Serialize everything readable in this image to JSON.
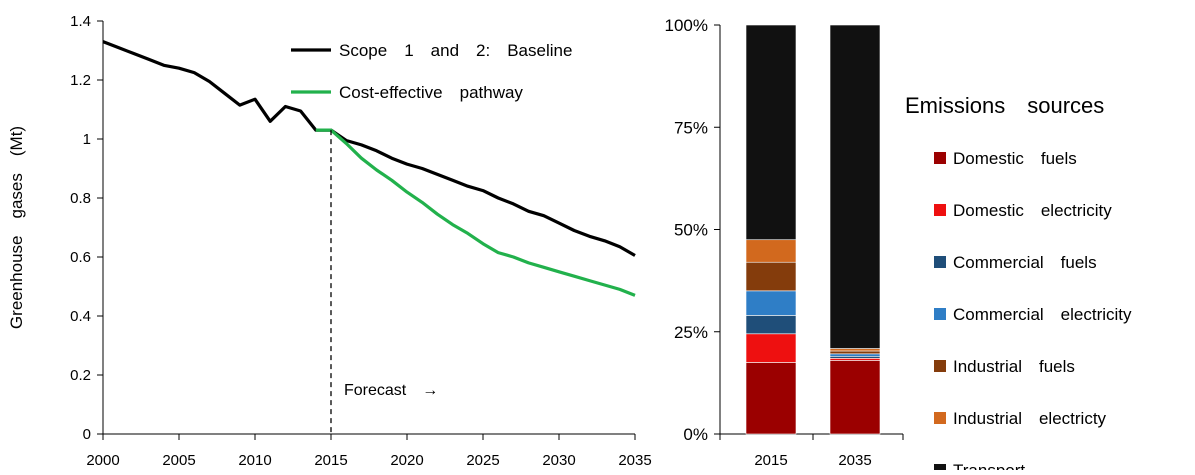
{
  "chart_data": [
    {
      "type": "line",
      "xlabel": "",
      "ylabel": "Greenhouse gases (Mt)",
      "xlim": [
        2000,
        2035
      ],
      "ylim": [
        0,
        1.4
      ],
      "xticks": [
        "2000",
        "2005",
        "2010",
        "2015",
        "2020",
        "2025",
        "2030",
        "2035"
      ],
      "yticks": [
        "0",
        "0.2",
        "0.4",
        "0.6",
        "0.8",
        "1",
        "1.2",
        "1.4"
      ],
      "series": [
        {
          "name": "Scope 1 and 2: Baseline",
          "color": "#000000",
          "x": [
            2000,
            2001,
            2002,
            2003,
            2004,
            2005,
            2006,
            2007,
            2008,
            2009,
            2010,
            2011,
            2012,
            2013,
            2014,
            2015,
            2016,
            2017,
            2018,
            2019,
            2020,
            2021,
            2022,
            2023,
            2024,
            2025,
            2026,
            2027,
            2028,
            2029,
            2030,
            2031,
            2032,
            2033,
            2034,
            2035
          ],
          "y": [
            1.33,
            1.31,
            1.29,
            1.27,
            1.25,
            1.24,
            1.225,
            1.195,
            1.155,
            1.115,
            1.135,
            1.06,
            1.11,
            1.095,
            1.03,
            1.03,
            0.995,
            0.98,
            0.96,
            0.935,
            0.915,
            0.9,
            0.88,
            0.86,
            0.84,
            0.825,
            0.8,
            0.78,
            0.755,
            0.74,
            0.715,
            0.69,
            0.67,
            0.655,
            0.635,
            0.605
          ]
        },
        {
          "name": "Cost-effective pathway",
          "color": "#22b14c",
          "x": [
            2014,
            2015,
            2016,
            2017,
            2018,
            2019,
            2020,
            2021,
            2022,
            2023,
            2024,
            2025,
            2026,
            2027,
            2028,
            2029,
            2030,
            2031,
            2032,
            2033,
            2034,
            2035
          ],
          "y": [
            1.03,
            1.03,
            0.985,
            0.935,
            0.895,
            0.86,
            0.82,
            0.785,
            0.745,
            0.71,
            0.68,
            0.645,
            0.615,
            0.6,
            0.58,
            0.565,
            0.55,
            0.535,
            0.52,
            0.505,
            0.49,
            0.47
          ]
        }
      ],
      "annotations": [
        {
          "text": "Forecast →",
          "x": 2015,
          "y": 0.15,
          "style": "dashed vertical line at 2015"
        }
      ],
      "legend_position": "top-right",
      "grid": false
    },
    {
      "type": "bar",
      "stacked": true,
      "normalized": true,
      "categories": [
        "2015",
        "2035"
      ],
      "yticks": [
        "0%",
        "25%",
        "50%",
        "75%",
        "100%"
      ],
      "ylim": [
        0,
        100
      ],
      "legend_title": "Emissions sources",
      "legend_position": "right",
      "series": [
        {
          "name": "Domestic fuels",
          "color": "#9b0000",
          "values": [
            17.5,
            18
          ]
        },
        {
          "name": "Domestic electricity",
          "color": "#ee1010",
          "values": [
            7,
            0.5
          ]
        },
        {
          "name": "Commercial fuels",
          "color": "#1f4e79",
          "values": [
            4.5,
            0.5
          ]
        },
        {
          "name": "Commercial electricity",
          "color": "#2f7ec6",
          "values": [
            6,
            0.6
          ]
        },
        {
          "name": "Industrial fuels",
          "color": "#843c0c",
          "values": [
            7,
            0.7
          ]
        },
        {
          "name": "Industrial electricty",
          "color": "#d2691e",
          "values": [
            5.5,
            0.6
          ]
        },
        {
          "name": "Transport ",
          "color": "#111111",
          "values": [
            52.5,
            79.1
          ]
        }
      ]
    }
  ]
}
